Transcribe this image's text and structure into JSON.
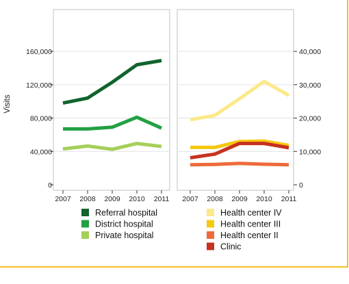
{
  "chart_data": [
    {
      "type": "line",
      "ylabel": "Visits",
      "x": [
        "2007",
        "2008",
        "2009",
        "2010",
        "2011"
      ],
      "ylim": [
        0,
        165000
      ],
      "yticks": [
        "0",
        "40,000",
        "80,000",
        "120,000",
        "160,000"
      ],
      "ytick_values": [
        0,
        40000,
        80000,
        120000,
        160000
      ],
      "grid": "horizontal",
      "legend_position": "bottom",
      "series": [
        {
          "name": "Referral hospital",
          "color": "#11632c",
          "values": [
            98000,
            104000,
            123000,
            144000,
            149000
          ]
        },
        {
          "name": "District hospital",
          "color": "#22a043",
          "values": [
            67000,
            67000,
            69000,
            81000,
            68000
          ]
        },
        {
          "name": "Private hospital",
          "color": "#a5cf58",
          "values": [
            43000,
            46500,
            42500,
            49500,
            46000
          ]
        }
      ]
    },
    {
      "type": "line",
      "x": [
        "2007",
        "2008",
        "2009",
        "2010",
        "2011"
      ],
      "ylim": [
        0,
        41250
      ],
      "yticks": [
        "0",
        "10,000",
        "20,000",
        "30,000",
        "40,000"
      ],
      "ytick_values": [
        0,
        10000,
        20000,
        30000,
        40000
      ],
      "yaxis_side": "right",
      "grid": "horizontal",
      "legend_position": "bottom",
      "series": [
        {
          "name": "Health center IV",
          "color": "#fbe98a",
          "values": [
            19500,
            20800,
            25800,
            31000,
            26800
          ]
        },
        {
          "name": "Health center III",
          "color": "#f7c80f",
          "values": [
            11200,
            11200,
            13000,
            13100,
            11800
          ]
        },
        {
          "name": "Health center II",
          "color": "#ee6a3b",
          "values": [
            6000,
            6100,
            6400,
            6150,
            6000
          ]
        },
        {
          "name": "Clinic",
          "color": "#c6321e",
          "values": [
            8100,
            9200,
            12400,
            12400,
            11100
          ]
        }
      ]
    }
  ],
  "colors": {
    "frame_accent": "#f5c21a",
    "panel_border": "#cccccc",
    "gridline": "#e2e2e2"
  }
}
